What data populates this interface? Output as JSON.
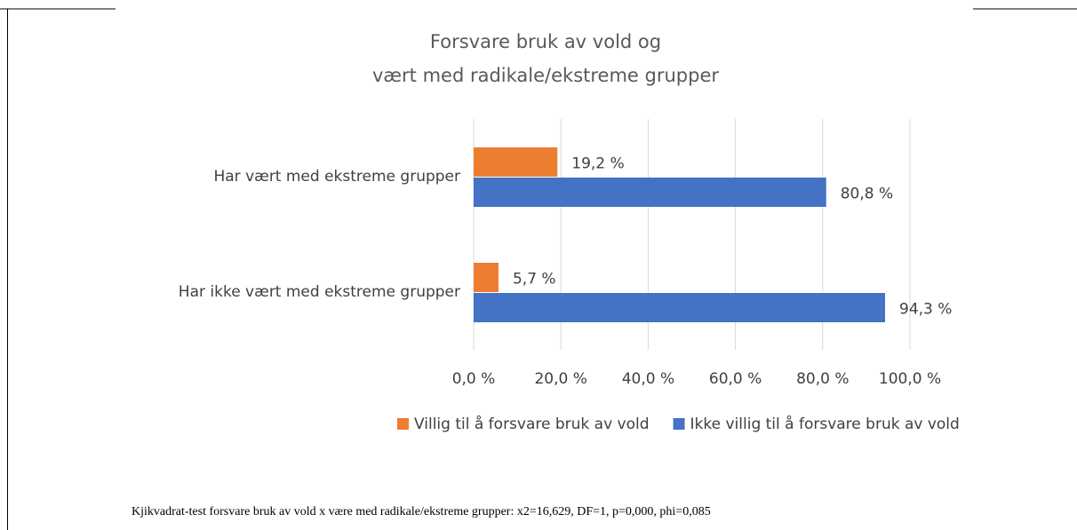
{
  "chart_data": {
    "type": "bar",
    "orientation": "horizontal",
    "title": [
      "Forsvare bruk av vold og",
      "vært med radikale/ekstreme grupper"
    ],
    "categories": [
      "Har vært med ekstreme grupper",
      "Har ikke vært med ekstreme grupper"
    ],
    "series": [
      {
        "name": "Villig til å forsvare bruk av vold",
        "color": "#ed7d31",
        "values": [
          19.2,
          5.7
        ],
        "value_labels": [
          "19,2 %",
          "5,7 %"
        ]
      },
      {
        "name": "Ikke villig til å forsvare bruk av vold",
        "color": "#4472c4",
        "values": [
          80.8,
          94.3
        ],
        "value_labels": [
          "80,8 %",
          "94,3 %"
        ]
      }
    ],
    "xlim": [
      0,
      100
    ],
    "xticks": [
      {
        "value": 0,
        "label": "0,0 %"
      },
      {
        "value": 20,
        "label": "20,0 %"
      },
      {
        "value": 40,
        "label": "40,0 %"
      },
      {
        "value": 60,
        "label": "60,0 %"
      },
      {
        "value": 80,
        "label": "80,0 %"
      },
      {
        "value": 100,
        "label": "100,0 %"
      }
    ],
    "grid": true,
    "legend": "bottom",
    "note": "Kjikvadrat-test forsvare bruk av vold x være med radikale/ekstreme grupper: x2=16,629, DF=1, p=0,000, phi=0,085"
  }
}
